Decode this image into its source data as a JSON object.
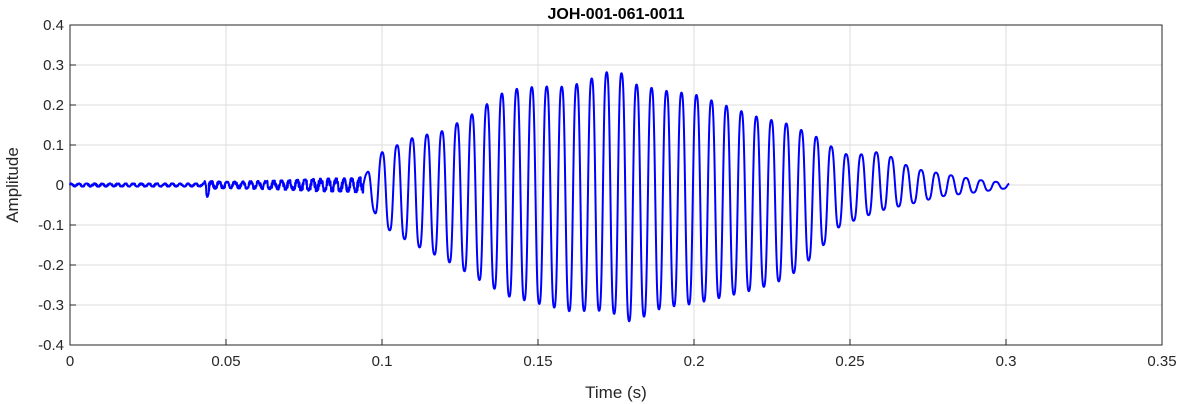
{
  "chart_data": {
    "type": "line",
    "title": "JOH-001-061-0011",
    "xlabel": "Time (s)",
    "ylabel": "Amplitude",
    "xlim": [
      0,
      0.35
    ],
    "ylim": [
      -0.4,
      0.4
    ],
    "xticks": [
      0,
      0.05,
      0.1,
      0.15,
      0.2,
      0.25,
      0.3,
      0.35
    ],
    "xtick_labels": [
      "0",
      "0.05",
      "0.1",
      "0.15",
      "0.2",
      "0.25",
      "0.3",
      "0.35"
    ],
    "yticks": [
      0.4,
      0.3,
      0.2,
      0.1,
      0,
      -0.1,
      -0.2,
      -0.3,
      -0.4
    ],
    "ytick_labels": [
      "0.4",
      "0.3",
      "0.2",
      "0.1",
      "0",
      "-0.1",
      "-0.2",
      "-0.3",
      "-0.4"
    ],
    "grid": true,
    "series": [
      {
        "color": "#0000ff",
        "x_start": 0,
        "x_end": 0.301,
        "envelope": {
          "x": [
            0,
            0.043,
            0.044,
            0.045,
            0.05,
            0.06,
            0.07,
            0.08,
            0.09,
            0.094,
            0.1,
            0.11,
            0.12,
            0.13,
            0.14,
            0.15,
            0.16,
            0.17,
            0.175,
            0.18,
            0.19,
            0.2,
            0.21,
            0.22,
            0.23,
            0.24,
            0.245,
            0.25,
            0.26,
            0.27,
            0.28,
            0.29,
            0.301
          ],
          "upper": [
            0.004,
            0.004,
            0.045,
            0.01,
            0.008,
            0.01,
            0.012,
            0.016,
            0.017,
            0.02,
            0.09,
            0.13,
            0.15,
            0.2,
            0.26,
            0.27,
            0.27,
            0.3,
            0.32,
            0.28,
            0.26,
            0.25,
            0.22,
            0.19,
            0.17,
            0.13,
            0.1,
            0.08,
            0.09,
            0.045,
            0.03,
            0.015,
            0.005
          ],
          "lower": [
            -0.004,
            -0.004,
            -0.032,
            -0.01,
            -0.008,
            -0.01,
            -0.012,
            -0.016,
            -0.017,
            -0.02,
            -0.11,
            -0.16,
            -0.2,
            -0.25,
            -0.3,
            -0.32,
            -0.34,
            -0.34,
            -0.35,
            -0.37,
            -0.33,
            -0.32,
            -0.3,
            -0.28,
            -0.25,
            -0.18,
            -0.12,
            -0.1,
            -0.07,
            -0.05,
            -0.03,
            -0.02,
            -0.008
          ]
        },
        "period_before_voicing": 0.0025,
        "period_voiced": 0.0048,
        "voicing_onset": 0.094
      }
    ]
  }
}
